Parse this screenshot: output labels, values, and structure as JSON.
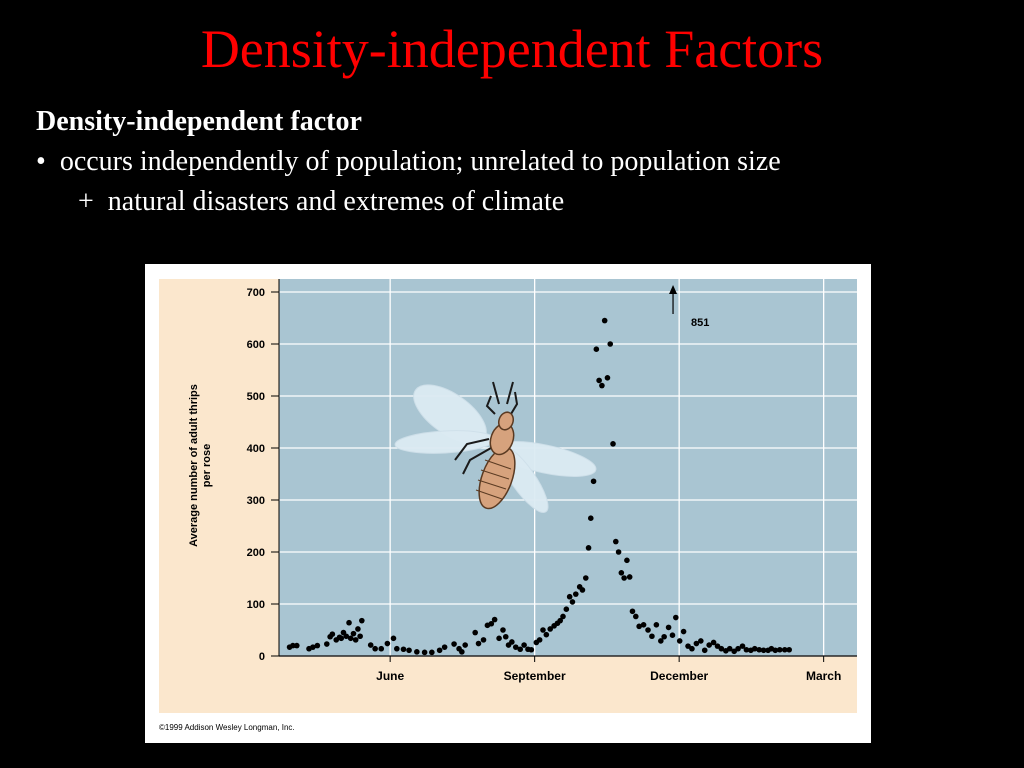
{
  "slide": {
    "title": "Density-independent Factors",
    "heading": "Density-independent factor",
    "bullet": "occurs independently of population;  unrelated to population size",
    "bullet_marker": "•",
    "sub_bullet": "natural disasters and extremes of climate",
    "sub_marker": "+"
  },
  "colors": {
    "background": "#000000",
    "title": "#ff0000",
    "text": "#ffffff",
    "plot_bg": "#a9c5d2",
    "frame_bg": "#fbe7cd",
    "points": "#000000"
  },
  "chart_data": {
    "type": "scatter",
    "title": "",
    "xlabel": "",
    "ylabel": "Average number of adult thrips per rose",
    "ylim": [
      0,
      700
    ],
    "y_ticks": [
      0,
      100,
      200,
      300,
      400,
      500,
      600,
      700
    ],
    "x_ticks": [
      {
        "label": "June",
        "pos": 20
      },
      {
        "label": "September",
        "pos": 46
      },
      {
        "label": "December",
        "pos": 72
      },
      {
        "label": "March",
        "pos": 98
      }
    ],
    "xlim": [
      0,
      104
    ],
    "grid": true,
    "annotation": {
      "text": "851",
      "x": 70.9,
      "y": 851
    },
    "credit": "©1999 Addison Wesley Longman, Inc.",
    "illustration": "thrips-insect",
    "points": [
      [
        1.9,
        17
      ],
      [
        2.5,
        20
      ],
      [
        3.2,
        20
      ],
      [
        5.4,
        14
      ],
      [
        6.1,
        17
      ],
      [
        6.9,
        20
      ],
      [
        8.6,
        23
      ],
      [
        9.2,
        37
      ],
      [
        9.6,
        42
      ],
      [
        10.3,
        31
      ],
      [
        10.9,
        36
      ],
      [
        11.2,
        34
      ],
      [
        11.6,
        45
      ],
      [
        12.1,
        38
      ],
      [
        12.6,
        64
      ],
      [
        12.9,
        34
      ],
      [
        13.4,
        43
      ],
      [
        13.8,
        31
      ],
      [
        14.2,
        52
      ],
      [
        14.6,
        38
      ],
      [
        14.9,
        68
      ],
      [
        16.5,
        21
      ],
      [
        17.3,
        14
      ],
      [
        18.4,
        14
      ],
      [
        19.5,
        24
      ],
      [
        20.6,
        34
      ],
      [
        21.2,
        14
      ],
      [
        22.4,
        13
      ],
      [
        23.4,
        11
      ],
      [
        24.8,
        8
      ],
      [
        26.2,
        7
      ],
      [
        27.5,
        7
      ],
      [
        28.9,
        11
      ],
      [
        29.8,
        17
      ],
      [
        31.5,
        23
      ],
      [
        32.4,
        14
      ],
      [
        32.9,
        8
      ],
      [
        33.5,
        21
      ],
      [
        35.3,
        45
      ],
      [
        35.9,
        24
      ],
      [
        36.8,
        31
      ],
      [
        37.5,
        59
      ],
      [
        38.2,
        62
      ],
      [
        38.8,
        70
      ],
      [
        39.6,
        34
      ],
      [
        40.3,
        50
      ],
      [
        40.8,
        37
      ],
      [
        41.3,
        21
      ],
      [
        41.9,
        27
      ],
      [
        42.6,
        17
      ],
      [
        43.4,
        13
      ],
      [
        44.1,
        21
      ],
      [
        44.8,
        13
      ],
      [
        45.4,
        12
      ],
      [
        46.3,
        26
      ],
      [
        46.9,
        31
      ],
      [
        47.5,
        50
      ],
      [
        48.1,
        41
      ],
      [
        48.8,
        52
      ],
      [
        49.5,
        58
      ],
      [
        50.1,
        63
      ],
      [
        50.6,
        68
      ],
      [
        51.1,
        76
      ],
      [
        51.7,
        90
      ],
      [
        52.3,
        114
      ],
      [
        52.8,
        104
      ],
      [
        53.4,
        119
      ],
      [
        54.1,
        133
      ],
      [
        54.6,
        127
      ],
      [
        55.2,
        150
      ],
      [
        55.7,
        208
      ],
      [
        56.1,
        265
      ],
      [
        56.6,
        336
      ],
      [
        57.1,
        590
      ],
      [
        57.6,
        530
      ],
      [
        58.1,
        520
      ],
      [
        58.6,
        645
      ],
      [
        59.1,
        535
      ],
      [
        59.6,
        600
      ],
      [
        60.1,
        408
      ],
      [
        60.6,
        220
      ],
      [
        61.1,
        200
      ],
      [
        61.6,
        160
      ],
      [
        62.1,
        150
      ],
      [
        62.6,
        184
      ],
      [
        63.1,
        152
      ],
      [
        63.6,
        86
      ],
      [
        64.2,
        76
      ],
      [
        64.8,
        57
      ],
      [
        65.6,
        60
      ],
      [
        66.4,
        50
      ],
      [
        67.1,
        38
      ],
      [
        67.9,
        60
      ],
      [
        68.7,
        29
      ],
      [
        69.3,
        37
      ],
      [
        70.1,
        55
      ],
      [
        70.8,
        40
      ],
      [
        71.4,
        74
      ],
      [
        72.1,
        29
      ],
      [
        72.8,
        47
      ],
      [
        73.6,
        19
      ],
      [
        74.3,
        14
      ],
      [
        75.1,
        24
      ],
      [
        75.9,
        29
      ],
      [
        76.6,
        11
      ],
      [
        77.4,
        21
      ],
      [
        78.2,
        26
      ],
      [
        78.9,
        19
      ],
      [
        79.6,
        14
      ],
      [
        80.4,
        10
      ],
      [
        81.1,
        14
      ],
      [
        81.9,
        9
      ],
      [
        82.6,
        14
      ],
      [
        83.4,
        19
      ],
      [
        84.1,
        12
      ],
      [
        84.9,
        11
      ],
      [
        85.6,
        14
      ],
      [
        86.4,
        12
      ],
      [
        87.2,
        11
      ],
      [
        88.0,
        11
      ],
      [
        88.6,
        14
      ],
      [
        89.3,
        11
      ],
      [
        90.1,
        12
      ],
      [
        91.0,
        12
      ],
      [
        91.8,
        12
      ]
    ]
  }
}
